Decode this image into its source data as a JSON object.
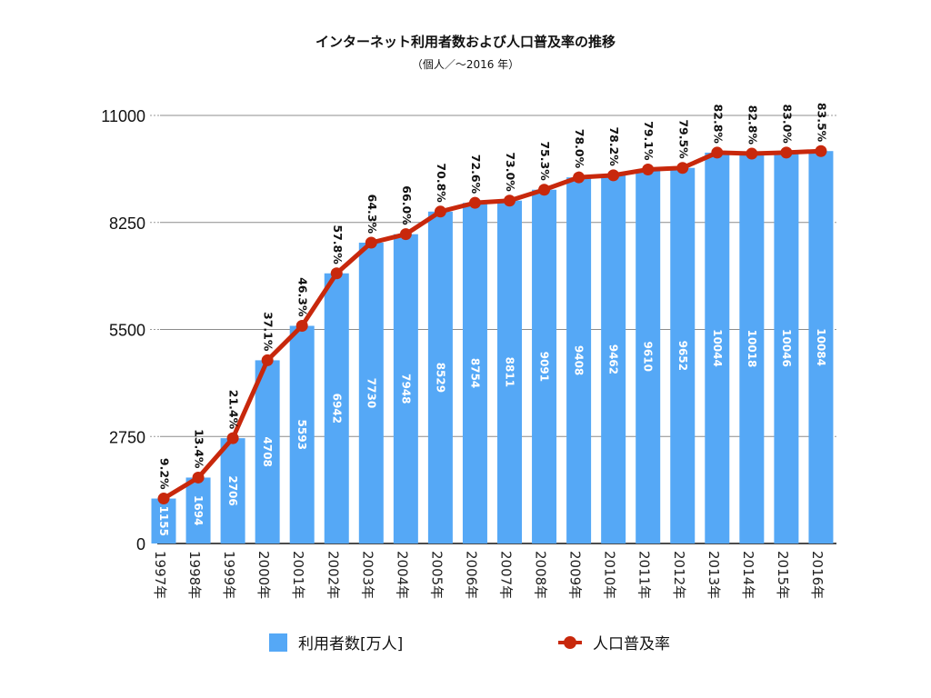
{
  "chart_data": {
    "type": "bar+line",
    "title": "インターネット利用者数および人口普及率の推移",
    "subtitle": "（個人／～2016 年）",
    "categories": [
      "1997年",
      "1998年",
      "1999年",
      "2000年",
      "2001年",
      "2002年",
      "2003年",
      "2004年",
      "2005年",
      "2006年",
      "2007年",
      "2008年",
      "2009年",
      "2010年",
      "2011年",
      "2012年",
      "2013年",
      "2014年",
      "2015年",
      "2016年"
    ],
    "series": [
      {
        "name": "利用者数[万人]",
        "type": "bar",
        "color": "#55a8f6",
        "values": [
          1155,
          1694,
          2706,
          4708,
          5593,
          6942,
          7730,
          7948,
          8529,
          8754,
          8811,
          9091,
          9408,
          9462,
          9610,
          9652,
          10044,
          10018,
          10046,
          10084
        ]
      },
      {
        "name": "人口普及率",
        "type": "line",
        "color": "#c8280c",
        "labels": [
          "9.2%",
          "13.4%",
          "21.4%",
          "37.1%",
          "46.3%",
          "57.8%",
          "64.3%",
          "66.0%",
          "70.8%",
          "72.6%",
          "73.0%",
          "75.3%",
          "78.0%",
          "78.2%",
          "79.1%",
          "79.5%",
          "82.8%",
          "82.8%",
          "83.0%",
          "83.5%"
        ]
      }
    ],
    "yticks": [
      "0",
      "2750",
      "5500",
      "8250",
      "11000"
    ],
    "ylim": [
      0,
      11000
    ],
    "grid": true,
    "legend": "bottom"
  }
}
